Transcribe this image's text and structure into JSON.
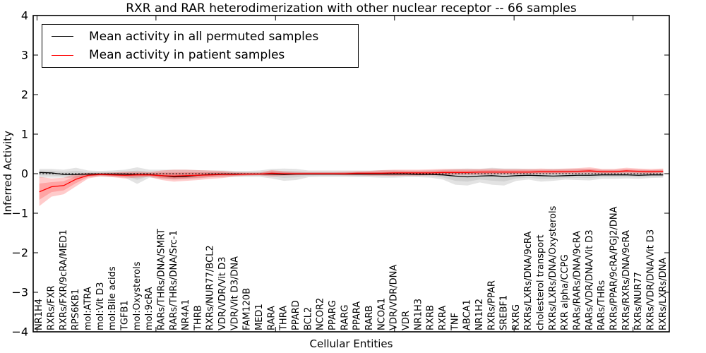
{
  "chart_data": {
    "type": "line",
    "title": "RXR and RAR heterodimerization with other nuclear receptor -- 66 samples",
    "xlabel": "Cellular Entities",
    "ylabel": "Inferred Activity",
    "ylim": [
      -4,
      4
    ],
    "grid": false,
    "zero_line": true,
    "legend_position": "upper left",
    "y_ticks": [
      {
        "value": 4,
        "label": "4"
      },
      {
        "value": 3,
        "label": "3"
      },
      {
        "value": 2,
        "label": "2"
      },
      {
        "value": 1,
        "label": "1"
      },
      {
        "value": 0,
        "label": "0"
      },
      {
        "value": -1,
        "label": "−1"
      },
      {
        "value": -2,
        "label": "−2"
      },
      {
        "value": -3,
        "label": "−3"
      },
      {
        "value": -4,
        "label": "−4"
      }
    ],
    "categories": [
      "NR1H4",
      "RXRs/FXR",
      "RXRs/FXR/9cRA/MED1",
      "RPS6KB1",
      "mol:ATRA",
      "mol:Vit D3",
      "mol:Bile acids",
      "TGFB1",
      "mol:Oxysterols",
      "mol:9cRA",
      "RARs/THRs/DNA/SMRT",
      "RARs/THRs/DNA/Src-1",
      "NR4A1",
      "THRB",
      "RXRs/NUR77/BCL2",
      "VDR/VDR/Vit D3",
      "VDR/Vit D3/DNA",
      "FAM120B",
      "MED1",
      "RARA",
      "THRA",
      "PPARD",
      "BCL2",
      "NCOR2",
      "PPARG",
      "RARG",
      "PPARA",
      "RARB",
      "NCOA1",
      "VDR/VDR/DNA",
      "VDR",
      "NR1H3",
      "RXRB",
      "RXRA",
      "TNF",
      "ABCA1",
      "NR1H2",
      "RXRs/PPAR",
      "SREBF1",
      "RXRG",
      "RXRs/LXRs/DNA/9cRA",
      "cholesterol transport",
      "RXRs/LXRs/DNA/Oxysterols",
      "RXR alpha/CCPG",
      "RARs/RARs/DNA/9cRA",
      "RARs/VDR/DNA/Vit D3",
      "RARs/THRs",
      "RXRs/PPAR/9cRA/PGJ2/DNA",
      "RXRs/RXRs/DNA/9cRA",
      "RXRs/NUR77",
      "RXRs/VDR/DNA/Vit D3",
      "RXRs/LXRs/DNA"
    ],
    "series": [
      {
        "name": "Mean activity in all permuted samples",
        "color": "#000000",
        "band_color": "#b0b0b0",
        "values": [
          0.03,
          0.02,
          -0.02,
          -0.02,
          -0.01,
          -0.01,
          -0.01,
          -0.01,
          -0.02,
          -0.02,
          -0.05,
          -0.08,
          -0.07,
          -0.04,
          -0.02,
          -0.01,
          -0.01,
          -0.01,
          -0.01,
          -0.01,
          -0.02,
          -0.01,
          -0.01,
          -0.01,
          -0.01,
          -0.01,
          -0.01,
          -0.01,
          -0.01,
          -0.01,
          -0.01,
          -0.02,
          -0.02,
          -0.03,
          -0.06,
          -0.08,
          -0.06,
          -0.05,
          -0.07,
          -0.05,
          -0.04,
          -0.05,
          -0.06,
          -0.05,
          -0.04,
          -0.04,
          -0.03,
          -0.03,
          -0.03,
          -0.04,
          -0.03,
          -0.03
        ],
        "band_lo": [
          -0.1,
          -0.1,
          -0.1,
          -0.12,
          -0.08,
          -0.07,
          -0.08,
          -0.1,
          -0.26,
          -0.1,
          -0.13,
          -0.15,
          -0.14,
          -0.12,
          -0.09,
          -0.08,
          -0.08,
          -0.08,
          -0.08,
          -0.12,
          -0.18,
          -0.16,
          -0.09,
          -0.08,
          -0.08,
          -0.08,
          -0.09,
          -0.09,
          -0.1,
          -0.1,
          -0.09,
          -0.09,
          -0.1,
          -0.15,
          -0.28,
          -0.3,
          -0.22,
          -0.28,
          -0.3,
          -0.18,
          -0.15,
          -0.2,
          -0.18,
          -0.15,
          -0.16,
          -0.17,
          -0.13,
          -0.13,
          -0.12,
          -0.13,
          -0.11,
          -0.1
        ],
        "band_hi": [
          0.12,
          0.12,
          0.1,
          0.15,
          0.08,
          0.07,
          0.08,
          0.1,
          0.16,
          0.1,
          0.1,
          0.1,
          0.1,
          0.09,
          0.08,
          0.08,
          0.07,
          0.07,
          0.08,
          0.12,
          0.13,
          0.12,
          0.08,
          0.08,
          0.08,
          0.08,
          0.08,
          0.08,
          0.09,
          0.09,
          0.08,
          0.08,
          0.09,
          0.1,
          0.12,
          0.13,
          0.12,
          0.15,
          0.13,
          0.13,
          0.12,
          0.11,
          0.12,
          0.12,
          0.12,
          0.12,
          0.1,
          0.1,
          0.1,
          0.1,
          0.09,
          0.1
        ]
      },
      {
        "name": "Mean activity in patient samples",
        "color": "#ff0000",
        "band_color": "#ff3030",
        "values": [
          -0.46,
          -0.33,
          -0.3,
          -0.14,
          -0.04,
          -0.02,
          -0.03,
          -0.04,
          -0.03,
          -0.03,
          -0.05,
          -0.06,
          -0.05,
          -0.04,
          -0.03,
          -0.02,
          -0.02,
          -0.01,
          -0.01,
          0.01,
          0.0,
          0.0,
          0.0,
          0.0,
          0.0,
          0.0,
          0.01,
          0.01,
          0.01,
          0.02,
          0.02,
          0.02,
          0.02,
          0.03,
          0.03,
          0.03,
          0.04,
          0.04,
          0.04,
          0.04,
          0.04,
          0.05,
          0.05,
          0.05,
          0.06,
          0.07,
          0.05,
          0.05,
          0.07,
          0.06,
          0.05,
          0.06
        ],
        "band_lo": [
          -0.82,
          -0.58,
          -0.52,
          -0.32,
          -0.12,
          -0.07,
          -0.09,
          -0.12,
          -0.1,
          -0.08,
          -0.16,
          -0.2,
          -0.18,
          -0.16,
          -0.13,
          -0.11,
          -0.07,
          -0.05,
          -0.04,
          -0.07,
          -0.05,
          -0.04,
          -0.03,
          -0.03,
          -0.03,
          -0.04,
          -0.04,
          -0.05,
          -0.05,
          -0.06,
          -0.05,
          -0.05,
          -0.04,
          -0.04,
          -0.03,
          -0.03,
          -0.03,
          -0.02,
          -0.02,
          -0.02,
          -0.01,
          -0.01,
          -0.01,
          0.0,
          0.0,
          0.01,
          0.0,
          0.0,
          0.01,
          0.0,
          0.0,
          0.01
        ],
        "band_hi": [
          -0.08,
          -0.12,
          -0.1,
          0.0,
          0.02,
          0.02,
          0.03,
          0.05,
          0.05,
          0.04,
          0.08,
          0.1,
          0.1,
          0.09,
          0.08,
          0.07,
          0.04,
          0.03,
          0.03,
          0.09,
          0.06,
          0.04,
          0.04,
          0.04,
          0.04,
          0.05,
          0.06,
          0.07,
          0.09,
          0.1,
          0.1,
          0.1,
          0.11,
          0.12,
          0.12,
          0.12,
          0.12,
          0.13,
          0.12,
          0.12,
          0.12,
          0.13,
          0.12,
          0.13,
          0.14,
          0.16,
          0.12,
          0.12,
          0.15,
          0.13,
          0.12,
          0.13
        ]
      }
    ]
  }
}
